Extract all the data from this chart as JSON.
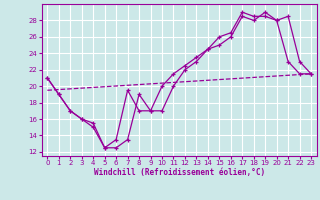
{
  "xlabel": "Windchill (Refroidissement éolien,°C)",
  "bg_color": "#cce8e8",
  "grid_color": "#ffffff",
  "line_color": "#990099",
  "xlim": [
    -0.5,
    23.5
  ],
  "ylim": [
    11.5,
    30.0
  ],
  "xticks": [
    0,
    1,
    2,
    3,
    4,
    5,
    6,
    7,
    8,
    9,
    10,
    11,
    12,
    13,
    14,
    15,
    16,
    17,
    18,
    19,
    20,
    21,
    22,
    23
  ],
  "yticks": [
    12,
    14,
    16,
    18,
    20,
    22,
    24,
    26,
    28
  ],
  "line1_x": [
    0,
    1,
    2,
    3,
    4,
    5,
    6,
    7,
    8,
    9,
    10,
    11,
    12,
    13,
    14,
    15,
    16,
    17,
    18,
    19,
    20,
    21,
    22,
    23
  ],
  "line1_y": [
    21,
    19,
    17,
    16,
    15.5,
    12.5,
    13.5,
    19.5,
    17,
    17,
    20,
    21.5,
    22.5,
    23.5,
    24.5,
    26,
    26.5,
    29,
    28.5,
    28.5,
    28,
    28.5,
    23,
    21.5
  ],
  "line2_x": [
    0,
    1,
    2,
    3,
    4,
    5,
    6,
    7,
    8,
    9,
    10,
    11,
    12,
    13,
    14,
    15,
    16,
    17,
    18,
    19,
    20,
    21,
    22,
    23
  ],
  "line2_y": [
    21,
    19,
    17,
    16,
    15,
    12.5,
    12.5,
    13.5,
    19,
    17,
    17,
    20,
    22,
    23,
    24.5,
    25,
    26,
    28.5,
    28,
    29,
    28,
    23,
    21.5,
    21.5
  ],
  "line3_x": [
    0,
    23
  ],
  "line3_y": [
    19.5,
    21.5
  ]
}
